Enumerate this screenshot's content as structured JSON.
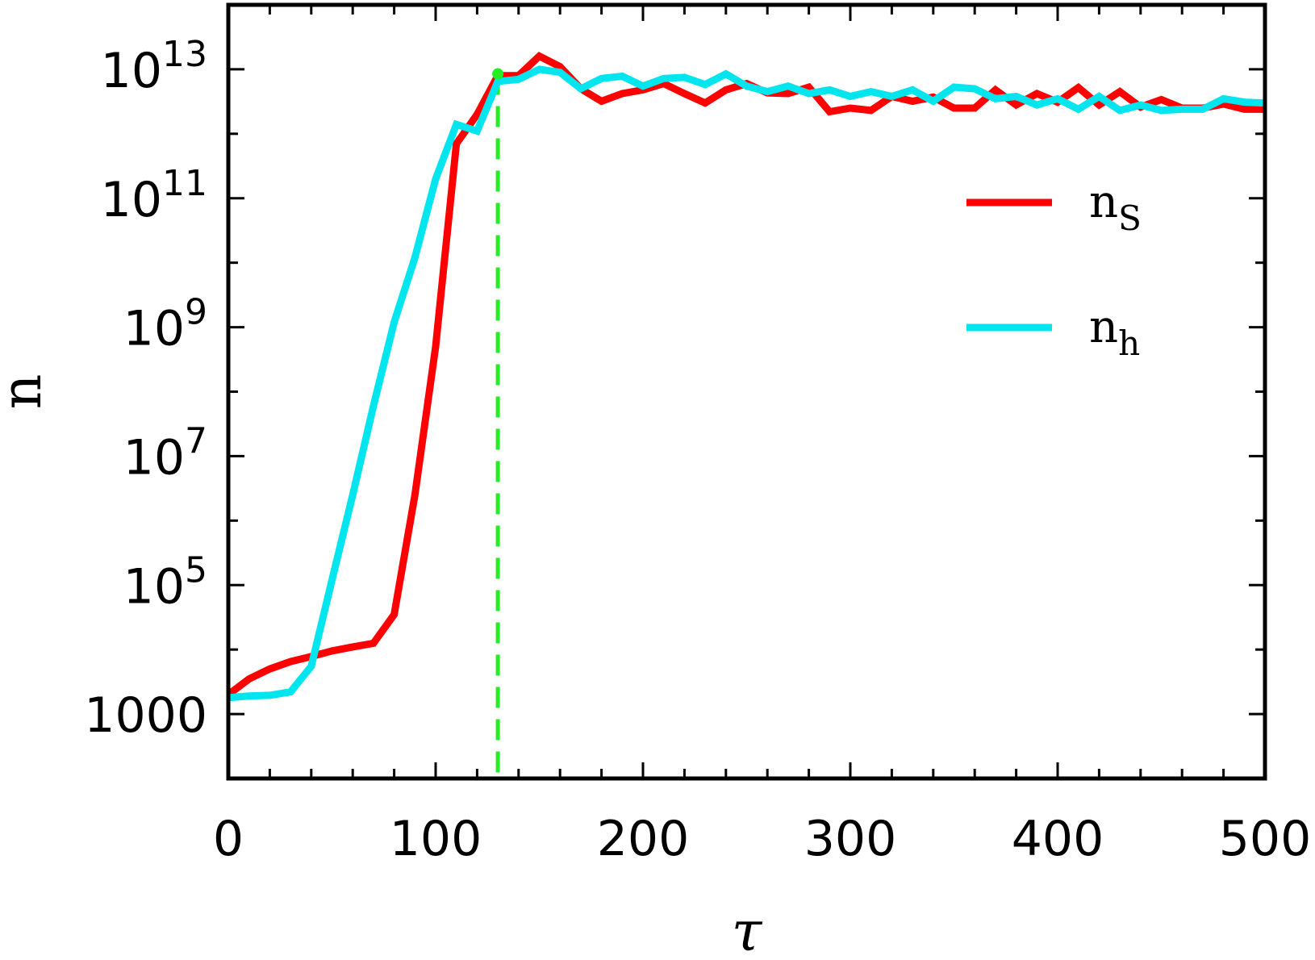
{
  "chart_data": {
    "type": "line",
    "title": "",
    "xlabel": "τ",
    "ylabel": "n",
    "x_scale": "linear",
    "y_scale": "log",
    "xlim": [
      0,
      500
    ],
    "ylim": [
      100,
      100000000000000.0
    ],
    "grid": false,
    "legend_position": "top-right",
    "x_ticks": [
      {
        "value": 0,
        "label": "0"
      },
      {
        "value": 100,
        "label": "100"
      },
      {
        "value": 200,
        "label": "200"
      },
      {
        "value": 300,
        "label": "300"
      },
      {
        "value": 400,
        "label": "400"
      },
      {
        "value": 500,
        "label": "500"
      }
    ],
    "y_ticks": [
      {
        "value": 1000,
        "label": "1000",
        "base": "",
        "exp": ""
      },
      {
        "value": 100000.0,
        "label": "10^5",
        "base": "10",
        "exp": "5"
      },
      {
        "value": 10000000.0,
        "label": "10^7",
        "base": "10",
        "exp": "7"
      },
      {
        "value": 1000000000.0,
        "label": "10^9",
        "base": "10",
        "exp": "9"
      },
      {
        "value": 100000000000.0,
        "label": "10^11",
        "base": "10",
        "exp": "11"
      },
      {
        "value": 10000000000000.0,
        "label": "10^13",
        "base": "10",
        "exp": "13"
      }
    ],
    "series": [
      {
        "name": "n_S",
        "label_main": "n",
        "label_sub": "S",
        "color": "#ff0000",
        "x": [
          0,
          10,
          20,
          30,
          40,
          50,
          60,
          70,
          80,
          90,
          100,
          110,
          120,
          130,
          140,
          150,
          160,
          170,
          180,
          190,
          200,
          210,
          220,
          230,
          240,
          250,
          260,
          270,
          280,
          290,
          300,
          310,
          320,
          330,
          340,
          350,
          360,
          370,
          380,
          390,
          400,
          410,
          420,
          430,
          440,
          450,
          460,
          470,
          480,
          490,
          500
        ],
        "y": [
          2000,
          3500,
          5000,
          6500,
          7800,
          9500,
          11000,
          12500,
          35000,
          2500000.0,
          500000000.0,
          700000000000.0,
          2000000000000.0,
          8000000000000.0,
          8000000000000.0,
          16000000000000.0,
          11000000000000.0,
          5000000000000.0,
          3200000000000.0,
          4200000000000.0,
          4800000000000.0,
          6000000000000.0,
          4200000000000.0,
          3000000000000.0,
          4800000000000.0,
          6000000000000.0,
          4300000000000.0,
          4200000000000.0,
          5300000000000.0,
          2200000000000.0,
          2500000000000.0,
          2300000000000.0,
          3800000000000.0,
          3200000000000.0,
          3700000000000.0,
          2500000000000.0,
          2500000000000.0,
          4800000000000.0,
          2800000000000.0,
          4200000000000.0,
          3100000000000.0,
          5200000000000.0,
          2800000000000.0,
          4500000000000.0,
          2600000000000.0,
          3400000000000.0,
          2500000000000.0,
          2500000000000.0,
          2900000000000.0,
          2400000000000.0,
          2400000000000.0
        ]
      },
      {
        "name": "n_h",
        "label_main": "n",
        "label_sub": "h",
        "color": "#00e5ee",
        "x": [
          0,
          10,
          20,
          30,
          40,
          50,
          60,
          70,
          80,
          90,
          100,
          110,
          120,
          130,
          140,
          150,
          160,
          170,
          180,
          190,
          200,
          210,
          220,
          230,
          240,
          250,
          260,
          270,
          280,
          290,
          300,
          310,
          320,
          330,
          340,
          350,
          360,
          370,
          380,
          390,
          400,
          410,
          420,
          430,
          440,
          450,
          460,
          470,
          480,
          490,
          500
        ],
        "y": [
          1800,
          1900,
          1950,
          2200,
          5500,
          120000.0,
          2500000.0,
          60000000.0,
          1200000000.0,
          12000000000.0,
          200000000000.0,
          1400000000000.0,
          1100000000000.0,
          6500000000000.0,
          7000000000000.0,
          10000000000000.0,
          9000000000000.0,
          5000000000000.0,
          7200000000000.0,
          7800000000000.0,
          5500000000000.0,
          7200000000000.0,
          7500000000000.0,
          5800000000000.0,
          8500000000000.0,
          5500000000000.0,
          4500000000000.0,
          5500000000000.0,
          4200000000000.0,
          4800000000000.0,
          3800000000000.0,
          4500000000000.0,
          3800000000000.0,
          4800000000000.0,
          3200000000000.0,
          5300000000000.0,
          5000000000000.0,
          3500000000000.0,
          3800000000000.0,
          2800000000000.0,
          3500000000000.0,
          2400000000000.0,
          3800000000000.0,
          2300000000000.0,
          2800000000000.0,
          2300000000000.0,
          2400000000000.0,
          2400000000000.0,
          3500000000000.0,
          3100000000000.0,
          3000000000000.0
        ]
      }
    ],
    "reference_line": {
      "x": 130,
      "color": "#22ee22",
      "dash": true
    },
    "marker_point": {
      "x": 130,
      "y": 8500000000000.0,
      "color": "#22ee22"
    }
  }
}
